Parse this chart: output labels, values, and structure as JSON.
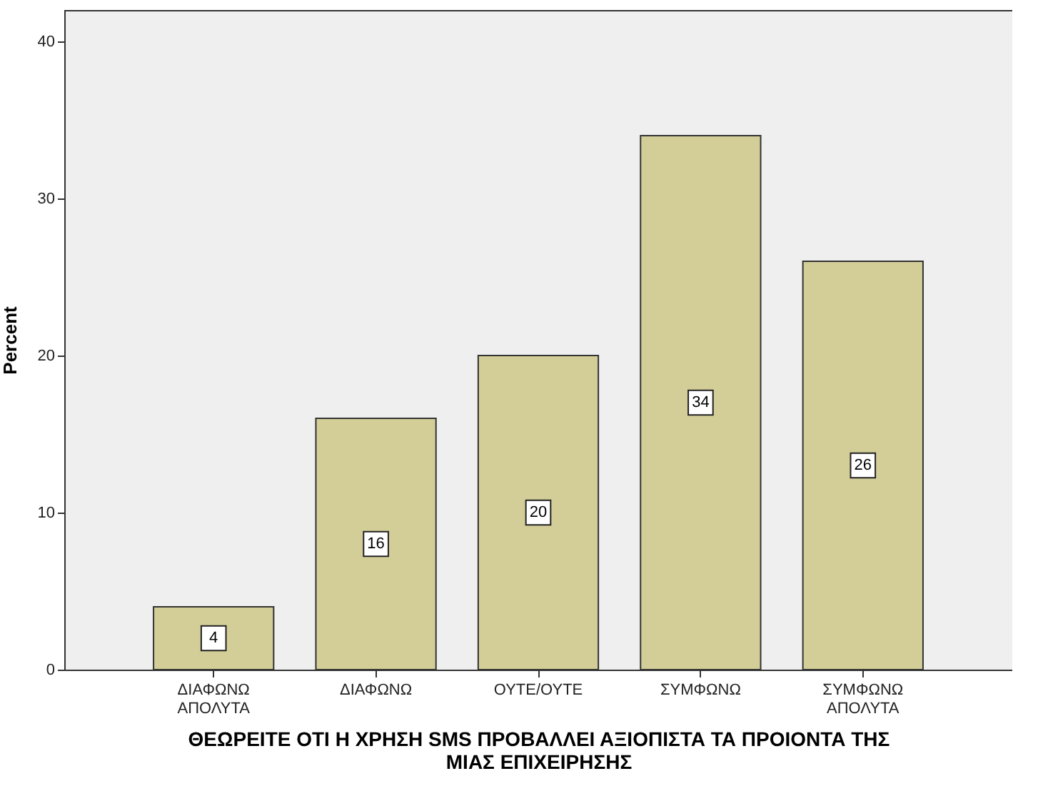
{
  "chart_data": {
    "type": "bar",
    "xlabel": "ΘΕΩΡΕΙΤΕ ΟΤΙ Η ΧΡΗΣΗ SMS ΠΡΟΒΑΛΛΕΙ ΑΞΙΟΠΙΣΤΑ ΤΑ ΠΡΟΙΟΝΤΑ ΤΗΣ\nΜΙΑΣ ΕΠΙΧΕΙΡΗΣΗΣ",
    "ylabel": "Percent",
    "categories": [
      "ΔΙΑΦΩΝΩ\nΑΠΟΛΥΤΑ",
      "ΔΙΑΦΩΝΩ",
      "ΟΥΤΕ/ΟΥΤΕ",
      "ΣΥΜΦΩΝΩ",
      "ΣΥΜΦΩΝΩ\nΑΠΟΛΥΤΑ"
    ],
    "values": [
      4,
      16,
      20,
      34,
      26
    ],
    "color": "#d3ce98",
    "ylim": [
      0,
      42
    ],
    "yticks": [
      0,
      10,
      20,
      30,
      40
    ],
    "grid": false,
    "data_labels": true
  }
}
